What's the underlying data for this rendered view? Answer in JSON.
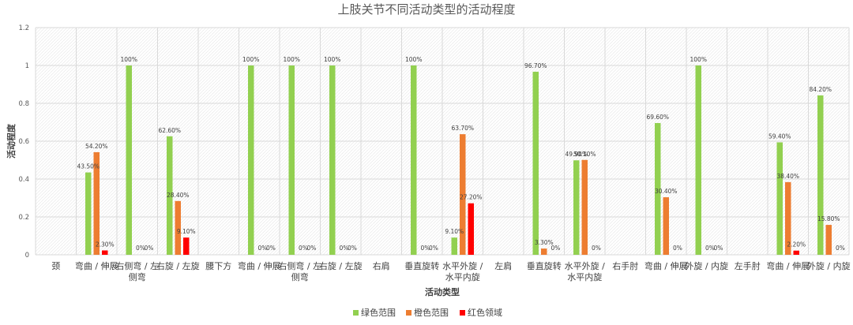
{
  "chart_data": {
    "type": "bar",
    "title": "上肢关节不同活动类型的活动程度",
    "xlabel": "活动类型",
    "ylabel": "活动程度",
    "ylim": [
      0,
      1.2
    ],
    "yticks": [
      "0",
      "0.2",
      "0.4",
      "0.6",
      "0.8",
      "1",
      "1.2"
    ],
    "grid": true,
    "legend_position": "bottom",
    "categories": [
      [
        "颈"
      ],
      [
        "弯曲 / 伸展"
      ],
      [
        "右侧弯 / 左",
        "侧弯"
      ],
      [
        "右旋 / 左旋"
      ],
      [
        "腰下方"
      ],
      [
        "弯曲 / 伸展"
      ],
      [
        "右侧弯 / 左",
        "侧弯"
      ],
      [
        "右旋 / 左旋"
      ],
      [
        "右肩"
      ],
      [
        "垂直旋转"
      ],
      [
        "水平外旋 /",
        "水平内旋"
      ],
      [
        "左肩"
      ],
      [
        "垂直旋转"
      ],
      [
        "水平外旋 /",
        "水平内旋"
      ],
      [
        "右手肘"
      ],
      [
        "弯曲 / 伸展"
      ],
      [
        "外旋 / 内旋"
      ],
      [
        "左手肘"
      ],
      [
        "弯曲 / 伸展"
      ],
      [
        "外旋 / 内旋"
      ]
    ],
    "series": [
      {
        "name": "绿色范围",
        "color": "#92D050",
        "values": [
          null,
          0.435,
          1.0,
          0.626,
          null,
          1.0,
          1.0,
          1.0,
          null,
          1.0,
          0.091,
          null,
          0.967,
          0.499,
          null,
          0.696,
          1.0,
          null,
          0.594,
          0.842
        ],
        "labels": [
          "",
          "43.50%",
          "100%",
          "62.60%",
          "",
          "100%",
          "100%",
          "100%",
          "",
          "100%",
          "9.10%",
          "",
          "96.70%",
          "49.90%",
          "",
          "69.60%",
          "100%",
          "",
          "59.40%",
          "84.20%"
        ]
      },
      {
        "name": "橙色范围",
        "color": "#ED7D31",
        "values": [
          null,
          0.542,
          0,
          0.284,
          null,
          0,
          0,
          0,
          null,
          0,
          0.637,
          null,
          0.033,
          0.501,
          null,
          0.304,
          0,
          null,
          0.384,
          0.158
        ],
        "labels": [
          "",
          "54.20%",
          "0%",
          "28.40%",
          "",
          "0%",
          "0%",
          "0%",
          "",
          "0%",
          "63.70%",
          "",
          "3.30%",
          "50.10%",
          "",
          "30.40%",
          "0%",
          "",
          "38.40%",
          "15.80%"
        ]
      },
      {
        "name": "红色领域",
        "color": "#FF0000",
        "values": [
          null,
          0.023,
          0,
          0.091,
          null,
          0,
          0,
          0,
          null,
          0,
          0.272,
          null,
          0,
          0,
          null,
          0,
          0,
          null,
          0.022,
          0
        ],
        "labels": [
          "",
          "2.30%",
          "0%",
          "9.10%",
          "",
          "0%",
          "0%",
          "0%",
          "",
          "0%",
          "27.20%",
          "",
          "0%",
          "0%",
          "",
          "0%",
          "0%",
          "",
          "2.20%",
          "0%"
        ]
      }
    ]
  }
}
